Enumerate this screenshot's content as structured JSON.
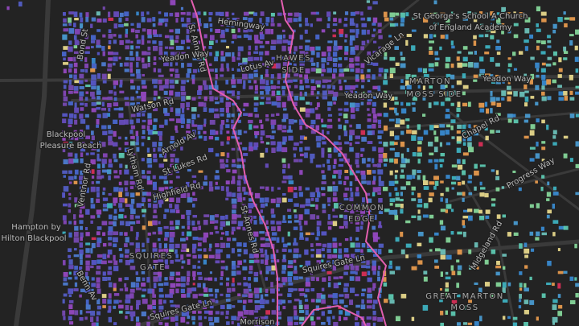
{
  "map": {
    "labels": [
      "St George's School A Church",
      "of England Academy",
      "Vicarage Ln",
      "Yeadon Way",
      "Yeadon Way",
      "MARTON",
      "MOSS SIDE",
      "Chapel Rd",
      "Progress Way",
      "Bond St",
      "Hemingway",
      "St Annes Rd",
      "Lotus Av",
      "HAWES",
      "SIDE",
      "Watson Rd",
      "Blackpool",
      "Pleasure Beach",
      "Ventnor Rd",
      "Lytham Rd",
      "Arnold Av",
      "St Lukes Rd",
      "Highfield Rd",
      "Hampton by",
      "Hilton Blackpool",
      "SQUIRES",
      "GATE",
      "Squires Gate Ln",
      "Squires Gate Ln",
      "COMMON",
      "EDGE",
      "Midgeland Rd",
      "GREAT MARTON",
      "MOSS",
      "St Annes Rd",
      "Morrison",
      "Yeadon Way",
      "Benn Av"
    ]
  }
}
